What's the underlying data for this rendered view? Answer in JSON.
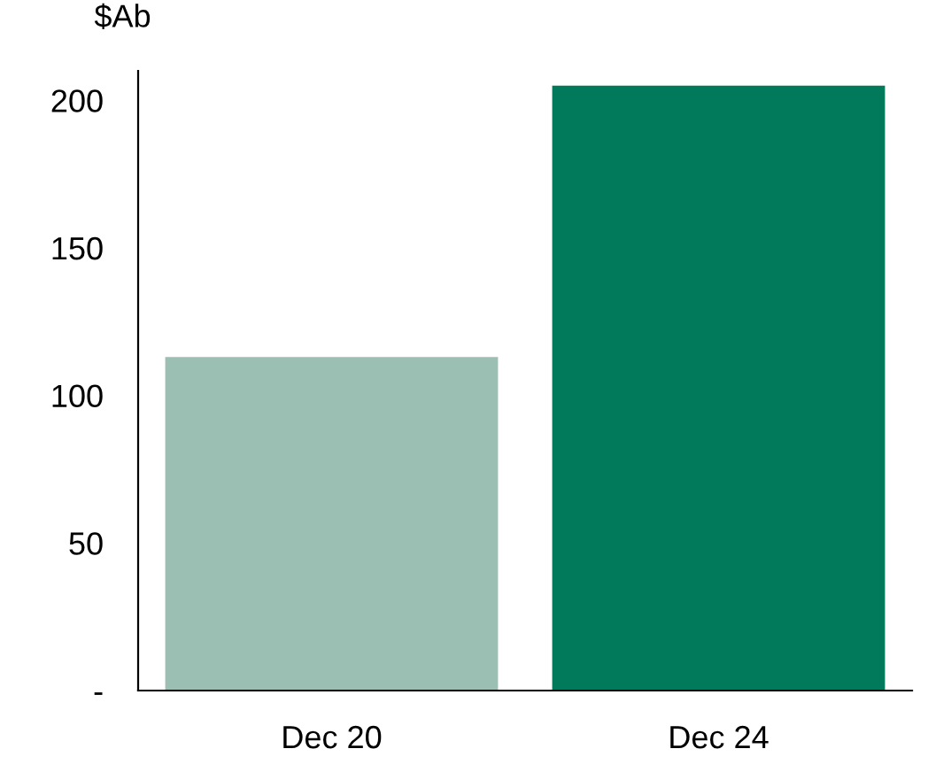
{
  "chart_data": {
    "type": "bar",
    "ylabel": "$Ab",
    "categories": [
      "Dec 20",
      "Dec 24"
    ],
    "values": [
      113,
      205
    ],
    "colors": [
      "#9bbfb3",
      "#007a5a"
    ],
    "ylim": [
      0,
      210
    ],
    "yticks": [
      {
        "value": 0,
        "label": "-"
      },
      50,
      100,
      150,
      200
    ],
    "grid": false,
    "legend": false
  }
}
